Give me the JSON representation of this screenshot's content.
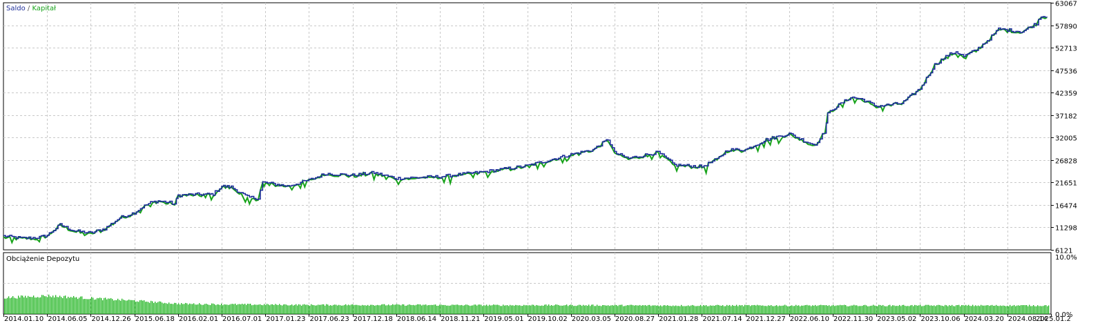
{
  "chart_data": [
    {
      "type": "line",
      "legend": {
        "placement": "top-left",
        "separator": " / "
      },
      "series": [
        {
          "name": "Saldo",
          "color": "#1f2f9a"
        },
        {
          "name": "Kapitał",
          "color": "#17a31a"
        }
      ],
      "x_dates": [
        "2014.01.10",
        "2014.06.05",
        "2014.12.26",
        "2015.06.18",
        "2016.02.01",
        "2016.07.01",
        "2017.01.23",
        "2017.06.23",
        "2017.12.18",
        "2018.06.14",
        "2018.11.21",
        "2019.05.01",
        "2019.10.02",
        "2020.03.05",
        "2020.08.27",
        "2021.01.28",
        "2021.07.14",
        "2021.12.27",
        "2022.06.10",
        "2022.11.30",
        "2023.05.02",
        "2023.10.06",
        "2024.03.20",
        "2024.08.14",
        "2025.01.2"
      ],
      "balance_points": [
        [
          "2014.01.10",
          9300
        ],
        [
          "2014.03.15",
          8800
        ],
        [
          "2014.05.10",
          9000
        ],
        [
          "2014.06.05",
          9500
        ],
        [
          "2014.08.05",
          11900
        ],
        [
          "2014.10.10",
          10500
        ],
        [
          "2014.12.26",
          10000
        ],
        [
          "2015.02.20",
          11000
        ],
        [
          "2015.04.20",
          13500
        ],
        [
          "2015.06.18",
          14700
        ],
        [
          "2015.07.30",
          16000
        ],
        [
          "2015.09.10",
          17000
        ],
        [
          "2015.10.20",
          17400
        ],
        [
          "2015.12.20",
          17000
        ],
        [
          "2016.01.15",
          16700
        ],
        [
          "2016.02.01",
          18700
        ],
        [
          "2016.04.01",
          18900
        ],
        [
          "2016.05.20",
          18900
        ],
        [
          "2016.06.01",
          19000
        ],
        [
          "2016.07.01",
          20800
        ],
        [
          "2016.08.15",
          20600
        ],
        [
          "2016.10.30",
          18300
        ],
        [
          "2016.12.20",
          18000
        ],
        [
          "2017.01.10",
          21700
        ],
        [
          "2017.01.23",
          21600
        ],
        [
          "2017.04.10",
          20800
        ],
        [
          "2017.06.23",
          22200
        ],
        [
          "2017.09.01",
          23700
        ],
        [
          "2017.12.18",
          23300
        ],
        [
          "2018.03.15",
          23900
        ],
        [
          "2018.06.14",
          22600
        ],
        [
          "2018.11.21",
          23000
        ],
        [
          "2019.05.01",
          24100
        ],
        [
          "2019.10.02",
          25500
        ],
        [
          "2020.03.05",
          28100
        ],
        [
          "2020.06.01",
          29200
        ],
        [
          "2020.07.10",
          30700
        ],
        [
          "2020.08.01",
          31600
        ],
        [
          "2020.08.27",
          28500
        ],
        [
          "2020.10.15",
          27200
        ],
        [
          "2021.01.28",
          28600
        ],
        [
          "2021.04.01",
          25700
        ],
        [
          "2021.07.14",
          25300
        ],
        [
          "2021.09.10",
          27000
        ],
        [
          "2021.10.20",
          29200
        ],
        [
          "2021.12.27",
          29200
        ],
        [
          "2022.03.15",
          31500
        ],
        [
          "2022.06.10",
          32900
        ],
        [
          "2022.08.15",
          31100
        ],
        [
          "2022.09.20",
          30300
        ],
        [
          "2022.10.10",
          32000
        ],
        [
          "2022.10.30",
          33300
        ],
        [
          "2022.11.10",
          37400
        ],
        [
          "2022.11.30",
          38600
        ],
        [
          "2023.02.01",
          41300
        ],
        [
          "2023.03.15",
          40800
        ],
        [
          "2023.05.02",
          39200
        ],
        [
          "2023.08.01",
          39900
        ],
        [
          "2023.10.06",
          43300
        ],
        [
          "2023.12.01",
          48800
        ],
        [
          "2024.01.20",
          51000
        ],
        [
          "2024.02.20",
          51800
        ],
        [
          "2024.03.20",
          50700
        ],
        [
          "2024.05.01",
          52200
        ],
        [
          "2024.06.15",
          54800
        ],
        [
          "2024.07.15",
          57000
        ],
        [
          "2024.08.14",
          56800
        ],
        [
          "2024.10.01",
          56400
        ],
        [
          "2024.11.15",
          58300
        ],
        [
          "2024.12.01",
          60100
        ],
        [
          "2024.12.20",
          59700
        ]
      ],
      "y_ticks": [
        63067,
        57890,
        52713,
        47536,
        42359,
        37182,
        32005,
        26828,
        21651,
        16474,
        11298,
        6121
      ],
      "ylim": [
        6121,
        63067
      ],
      "grid": true
    },
    {
      "type": "bar",
      "title": "Obciążenie Depozytu",
      "y_ticks_labels": [
        "10.0%",
        "0.0%"
      ],
      "ylim": [
        0,
        10
      ],
      "color": "#1bb31b",
      "load_points": [
        [
          "2014.01.10",
          2.7
        ],
        [
          "2014.06.05",
          3.0
        ],
        [
          "2014.12.26",
          2.6
        ],
        [
          "2015.06.18",
          2.2
        ],
        [
          "2016.02.01",
          1.7
        ],
        [
          "2016.07.01",
          1.6
        ],
        [
          "2017.01.23",
          1.55
        ],
        [
          "2017.06.23",
          1.5
        ],
        [
          "2018.06.14",
          1.5
        ],
        [
          "2019.05.01",
          1.45
        ],
        [
          "2020.03.05",
          1.45
        ],
        [
          "2021.01.28",
          1.4
        ],
        [
          "2022.06.10",
          1.4
        ],
        [
          "2023.05.02",
          1.4
        ],
        [
          "2024.03.20",
          1.4
        ],
        [
          "2025.01.05",
          1.4
        ]
      ]
    }
  ]
}
